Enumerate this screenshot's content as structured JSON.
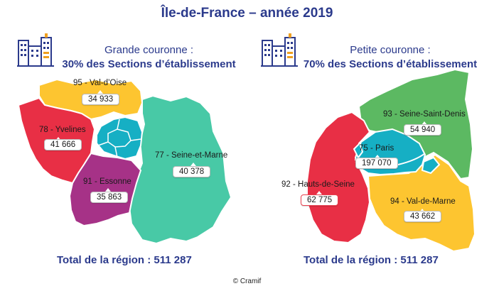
{
  "title": "Île-de-France – année 2019",
  "credit": "© Cramif",
  "colors": {
    "title": "#2b3a8c",
    "val_doise": "#fdc530",
    "yvelines": "#e82f45",
    "essonne": "#a63287",
    "paris_core": "#16afc4",
    "seine_et_marne": "#48c9a6",
    "seine_saint_denis": "#5cb962",
    "val_de_marne": "#fdc530",
    "hauts_de_seine": "#e82f45"
  },
  "left_panel": {
    "subtitle_line1": "Grande couronne :",
    "subtitle_line2": "30% des Sections d’établissement",
    "icon": "office-building-icon",
    "departments": [
      {
        "name": "95 - Val-d’Oise",
        "value": "34 933"
      },
      {
        "name": "78 - Yvelines",
        "value": "41 666"
      },
      {
        "name": "91 - Essonne",
        "value": "35 863"
      },
      {
        "name": "77 - Seine-et-Marne",
        "value": "40 378"
      }
    ],
    "total": "Total de la région : 511 287"
  },
  "right_panel": {
    "subtitle_line1": "Petite couronne :",
    "subtitle_line2": "70% des Sections d’établissement",
    "icon": "office-building-icon",
    "departments": [
      {
        "name": "93 - Seine-Saint-Denis",
        "value": "54 940"
      },
      {
        "name": "75 - Paris",
        "value": "197 070"
      },
      {
        "name": "92 - Hauts-de-Seine",
        "value": "62 775"
      },
      {
        "name": "94 - Val-de-Marne",
        "value": "43 662"
      }
    ],
    "total": "Total de la région : 511 287"
  }
}
